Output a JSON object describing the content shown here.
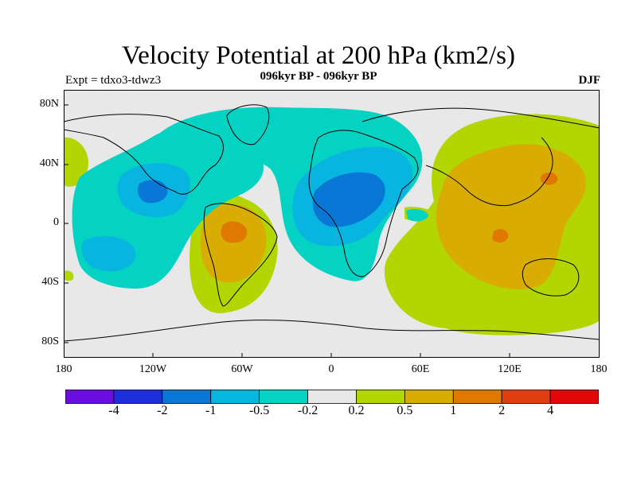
{
  "title": "Velocity Potential at 200 hPa (km2/s)",
  "subtitle": "096kyr BP - 096kyr BP",
  "experiment": "Expt = tdxo3-tdwz3",
  "season": "DJF",
  "lat_labels": [
    "80N",
    "40N",
    "0",
    "40S",
    "80S"
  ],
  "lon_labels": [
    "180",
    "120W",
    "60W",
    "0",
    "60E",
    "120E",
    "180"
  ],
  "colorbar": {
    "colors": [
      "#6a0ee0",
      "#1f2fd8",
      "#0877d6",
      "#08b4e0",
      "#04d2c2",
      "#e8e8e8",
      "#b4d600",
      "#d8ac00",
      "#e07800",
      "#e04010",
      "#e00808"
    ],
    "labels": [
      "-4",
      "-2",
      "-1",
      "-0.5",
      "-0.2",
      "0.2",
      "0.5",
      "1",
      "2",
      "4"
    ]
  }
}
